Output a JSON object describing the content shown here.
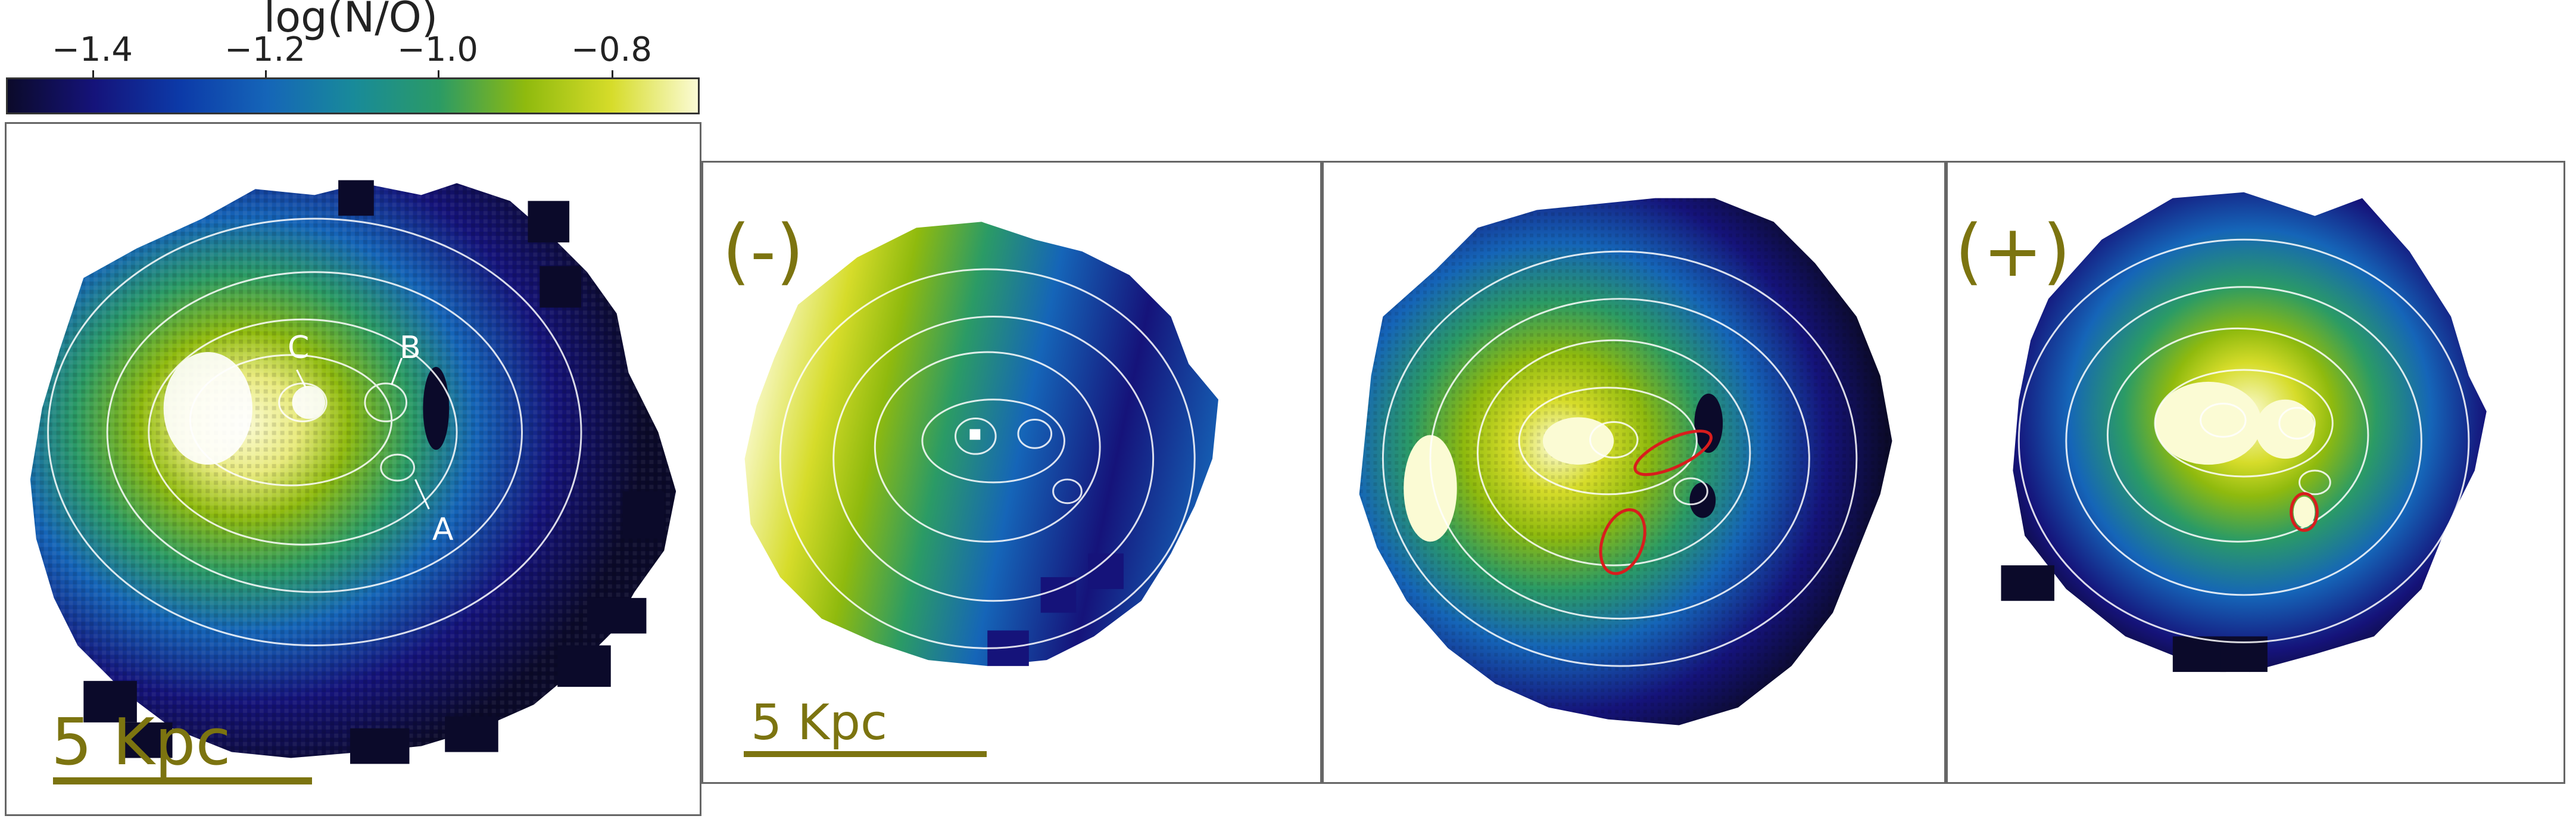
{
  "colorbar": {
    "label": "log(N/O)",
    "ticks": [
      "−1.4",
      "−1.2",
      "−1.0",
      "−0.8"
    ],
    "colormap": [
      "#0b0a2a",
      "#15137a",
      "#0c3aa8",
      "#1565b8",
      "#188a9a",
      "#2b9b65",
      "#8fba0e",
      "#d6dc2a",
      "#fbfbd4"
    ]
  },
  "panels": [
    {
      "id": "full-map",
      "scale_label": "5 Kpc",
      "points": [
        "A",
        "B",
        "C"
      ]
    },
    {
      "id": "negative-map",
      "sign_label": "(-)",
      "scale_label": "5 Kpc"
    },
    {
      "id": "middle-map",
      "regions": [
        "red-ellipse-upper",
        "red-ellipse-lower"
      ]
    },
    {
      "id": "positive-map",
      "sign_label": "(+)",
      "regions": [
        "red-ellipse-small"
      ]
    }
  ],
  "colors": {
    "label_olive": "#7c7410",
    "contour": "#ffffff",
    "region_outline": "#d81d1d",
    "panel_border": "#666666"
  }
}
